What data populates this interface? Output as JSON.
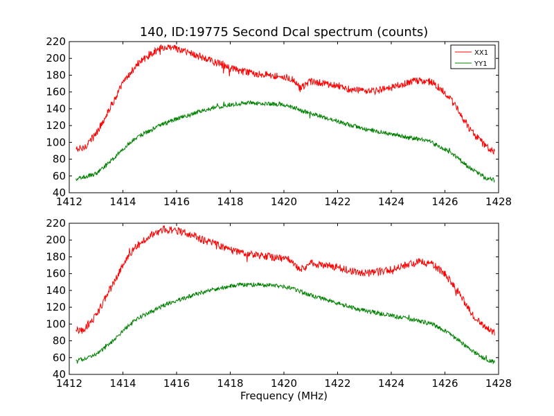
{
  "figure": {
    "title": "140, ID:19775 Second Dcal spectrum (counts)",
    "xlabel": "Frequency (MHz)"
  },
  "chart_data": [
    {
      "type": "line",
      "title": "140, ID:19775 Second Dcal spectrum (counts)",
      "xlabel": "",
      "ylabel": "",
      "xlim": [
        1412,
        1428
      ],
      "ylim": [
        40,
        220
      ],
      "xticks": [
        1412,
        1414,
        1416,
        1418,
        1420,
        1422,
        1424,
        1426,
        1428
      ],
      "yticks": [
        40,
        60,
        80,
        100,
        120,
        140,
        160,
        180,
        200,
        220
      ],
      "grid": false,
      "legend": {
        "position": "top-right",
        "entries": [
          "XX1",
          "YY1"
        ]
      },
      "x_range": [
        1412.25,
        1427.85
      ],
      "series": [
        {
          "name": "XX1",
          "color": "#ff0000",
          "noise": 4.5,
          "x": [
            1412.25,
            1412.5,
            1413.0,
            1413.5,
            1414.0,
            1414.5,
            1415.0,
            1415.5,
            1416.0,
            1416.5,
            1417.0,
            1417.5,
            1418.0,
            1418.5,
            1419.0,
            1419.5,
            1420.0,
            1420.3,
            1420.6,
            1421.0,
            1421.5,
            1422.0,
            1422.5,
            1423.0,
            1423.5,
            1424.0,
            1424.5,
            1425.0,
            1425.5,
            1426.0,
            1426.5,
            1427.0,
            1427.5,
            1427.85
          ],
          "values": [
            92,
            92,
            110,
            140,
            170,
            192,
            205,
            213,
            211,
            207,
            200,
            195,
            188,
            184,
            182,
            180,
            178,
            176,
            164,
            172,
            170,
            168,
            163,
            160,
            162,
            165,
            170,
            174,
            172,
            160,
            138,
            112,
            96,
            90
          ]
        },
        {
          "name": "YY1",
          "color": "#008000",
          "noise": 2.5,
          "x": [
            1412.25,
            1412.5,
            1413.0,
            1413.5,
            1414.0,
            1414.5,
            1415.0,
            1415.5,
            1416.0,
            1416.5,
            1417.0,
            1417.5,
            1418.0,
            1418.5,
            1419.0,
            1419.5,
            1420.0,
            1420.5,
            1421.0,
            1421.5,
            1422.0,
            1422.5,
            1423.0,
            1423.5,
            1424.0,
            1424.5,
            1425.0,
            1425.5,
            1426.0,
            1426.5,
            1427.0,
            1427.5,
            1427.85
          ],
          "values": [
            56,
            58,
            63,
            76,
            92,
            106,
            114,
            122,
            128,
            133,
            138,
            142,
            145,
            147,
            147,
            146,
            145,
            140,
            134,
            130,
            125,
            120,
            116,
            113,
            110,
            107,
            104,
            100,
            92,
            81,
            68,
            58,
            55
          ]
        }
      ]
    },
    {
      "type": "line",
      "title": "",
      "xlabel": "Frequency (MHz)",
      "ylabel": "",
      "xlim": [
        1412,
        1428
      ],
      "ylim": [
        40,
        220
      ],
      "xticks": [
        1412,
        1414,
        1416,
        1418,
        1420,
        1422,
        1424,
        1426,
        1428
      ],
      "yticks": [
        40,
        60,
        80,
        100,
        120,
        140,
        160,
        180,
        200,
        220
      ],
      "grid": false,
      "legend": null,
      "x_range": [
        1412.25,
        1427.85
      ],
      "series": [
        {
          "color": "#ff0000",
          "noise": 4.5,
          "x": [
            1412.25,
            1412.5,
            1413.0,
            1413.5,
            1414.0,
            1414.5,
            1415.0,
            1415.5,
            1416.0,
            1416.5,
            1417.0,
            1417.5,
            1418.0,
            1418.5,
            1419.0,
            1419.5,
            1420.0,
            1420.3,
            1420.6,
            1421.0,
            1421.5,
            1422.0,
            1422.5,
            1423.0,
            1423.5,
            1424.0,
            1424.5,
            1425.0,
            1425.5,
            1426.0,
            1426.5,
            1427.0,
            1427.5,
            1427.85
          ],
          "values": [
            92,
            92,
            110,
            140,
            170,
            192,
            205,
            213,
            211,
            207,
            200,
            195,
            188,
            184,
            182,
            180,
            178,
            176,
            164,
            172,
            170,
            168,
            163,
            160,
            162,
            165,
            170,
            174,
            172,
            160,
            138,
            112,
            96,
            90
          ]
        },
        {
          "color": "#008000",
          "noise": 2.5,
          "x": [
            1412.25,
            1412.5,
            1413.0,
            1413.5,
            1414.0,
            1414.5,
            1415.0,
            1415.5,
            1416.0,
            1416.5,
            1417.0,
            1417.5,
            1418.0,
            1418.5,
            1419.0,
            1419.5,
            1420.0,
            1420.5,
            1421.0,
            1421.5,
            1422.0,
            1422.5,
            1423.0,
            1423.5,
            1424.0,
            1424.5,
            1425.0,
            1425.5,
            1426.0,
            1426.5,
            1427.0,
            1427.5,
            1427.85
          ],
          "values": [
            56,
            58,
            63,
            76,
            92,
            106,
            114,
            122,
            128,
            133,
            138,
            142,
            145,
            147,
            147,
            146,
            145,
            140,
            134,
            130,
            125,
            120,
            116,
            113,
            110,
            107,
            104,
            100,
            92,
            81,
            68,
            58,
            55
          ]
        }
      ]
    }
  ]
}
